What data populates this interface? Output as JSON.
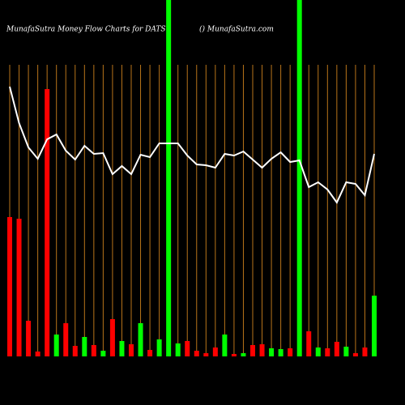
{
  "chart_data": {
    "type": "bar-line",
    "title": "MunafaSutra  Money Flow  Charts for DATS",
    "subtitle": "() MunafaSutra.com",
    "categories": [
      null,
      null,
      null,
      null,
      null,
      null,
      null,
      null,
      null,
      null,
      null,
      null,
      null,
      null,
      null,
      null,
      null,
      null,
      null,
      null,
      null,
      null,
      null,
      null,
      null,
      null,
      null,
      null,
      null,
      null,
      null,
      null,
      null,
      null,
      null,
      null,
      null,
      null,
      null,
      null
    ],
    "ylim": [
      0,
      440
    ],
    "grid_color": "#b8741a",
    "series": [
      {
        "kind": "bar",
        "values": [
          172,
          170,
          44,
          6,
          330,
          27,
          41,
          13,
          24,
          14,
          7,
          46,
          19,
          15,
          41,
          8,
          21,
          440,
          16,
          19,
          7,
          4,
          11,
          27,
          3,
          4,
          14,
          15,
          10,
          9,
          10,
          440,
          31,
          11,
          10,
          18,
          12,
          4,
          11,
          75
        ],
        "colors": [
          "#ff0000",
          "#ff0000",
          "#ff0000",
          "#ff0000",
          "#ff0000",
          "#00ff00",
          "#ff0000",
          "#ff0000",
          "#00ff00",
          "#ff0000",
          "#00ff00",
          "#ff0000",
          "#00ff00",
          "#ff0000",
          "#00ff00",
          "#ff0000",
          "#00ff00",
          "#00ff00",
          "#00ff00",
          "#ff0000",
          "#ff0000",
          "#ff0000",
          "#ff0000",
          "#00ff00",
          "#ff0000",
          "#00ff00",
          "#ff0000",
          "#ff0000",
          "#00ff00",
          "#00ff00",
          "#ff0000",
          "#00ff00",
          "#ff0000",
          "#00ff00",
          "#ff0000",
          "#ff0000",
          "#00ff00",
          "#ff0000",
          "#ff0000",
          "#00ff00"
        ]
      },
      {
        "kind": "line",
        "color": "#ffffff",
        "values": [
          333,
          288,
          258,
          244,
          268,
          274,
          254,
          243,
          260,
          250,
          251,
          225,
          235,
          225,
          249,
          246,
          263,
          263,
          263,
          248,
          237,
          236,
          233,
          250,
          248,
          253,
          243,
          233,
          244,
          252,
          240,
          242,
          209,
          215,
          206,
          190,
          215,
          213,
          199,
          250
        ]
      }
    ]
  }
}
